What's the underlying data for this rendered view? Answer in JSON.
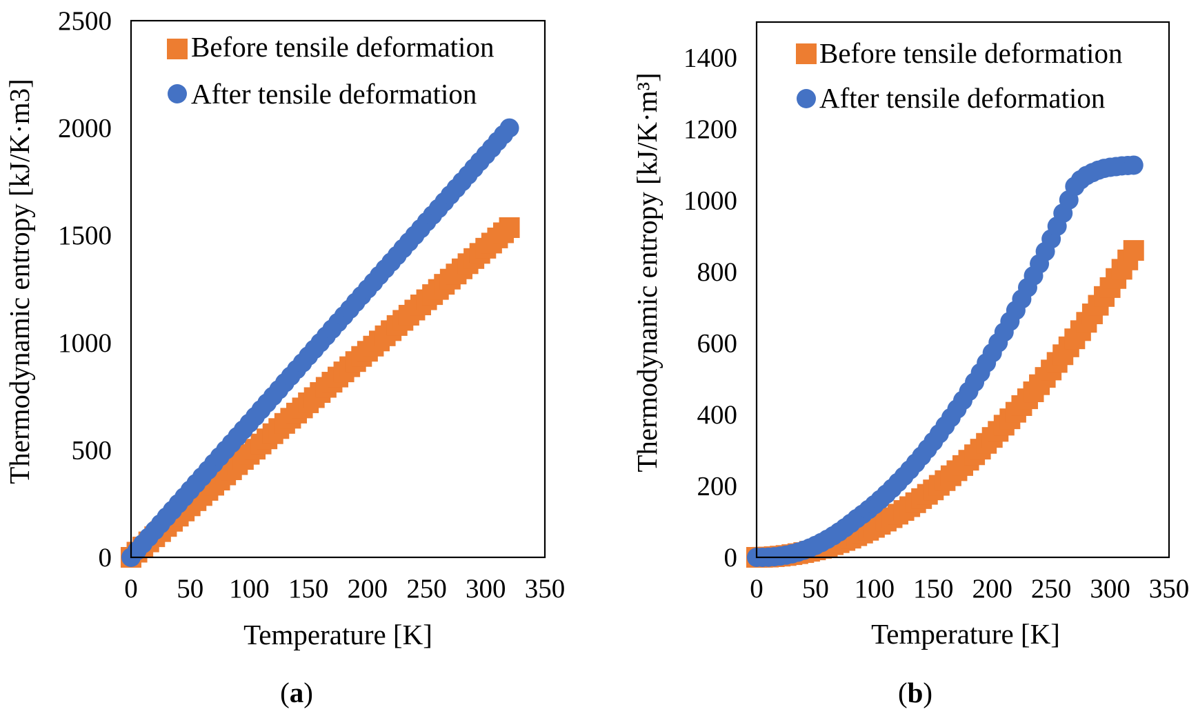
{
  "colors": {
    "before": "#ED7D31",
    "after": "#4472C4",
    "frame": "#000000"
  },
  "chart_data": [
    {
      "type": "scatter",
      "panel_label": {
        "open": "(",
        "letter": "a",
        "close": ")"
      },
      "xlabel": "Temperature [K]",
      "ylabel": "Thermodynamic entropy [kJ/K·m3]",
      "xlim": [
        0,
        350
      ],
      "ylim": [
        0,
        2500
      ],
      "xticks": [
        0,
        50,
        100,
        150,
        200,
        250,
        300,
        350
      ],
      "yticks": [
        0,
        500,
        1000,
        1500,
        2000,
        2500
      ],
      "grid": false,
      "legend_position": "top-left, inside plot",
      "series": [
        {
          "name": "Before tensile deformation",
          "marker": "square",
          "color": "#ED7D31",
          "x": [
            0,
            5,
            10,
            15,
            20,
            25,
            30,
            35,
            40,
            45,
            50,
            55,
            60,
            65,
            70,
            75,
            80,
            85,
            90,
            95,
            100,
            105,
            110,
            115,
            120,
            125,
            130,
            135,
            140,
            145,
            150,
            155,
            160,
            165,
            170,
            175,
            180,
            185,
            190,
            195,
            200,
            205,
            210,
            215,
            220,
            225,
            230,
            235,
            240,
            245,
            250,
            255,
            260,
            265,
            270,
            275,
            280,
            285,
            290,
            295,
            300,
            305,
            310,
            315,
            320
          ],
          "y": [
            0,
            24,
            48,
            72,
            96,
            120,
            144,
            168,
            192,
            216,
            240,
            264,
            288,
            312,
            336,
            360,
            384,
            408,
            432,
            456,
            480,
            504,
            528,
            552,
            576,
            600,
            624,
            648,
            672,
            696,
            720,
            744,
            768,
            792,
            816,
            840,
            864,
            888,
            912,
            936,
            960,
            984,
            1008,
            1032,
            1056,
            1080,
            1104,
            1128,
            1152,
            1176,
            1200,
            1224,
            1248,
            1272,
            1296,
            1320,
            1344,
            1368,
            1392,
            1416,
            1440,
            1464,
            1488,
            1512,
            1536
          ]
        },
        {
          "name": "After tensile deformation",
          "marker": "circle",
          "color": "#4472C4",
          "x": [
            0,
            5,
            10,
            15,
            20,
            25,
            30,
            35,
            40,
            45,
            50,
            55,
            60,
            65,
            70,
            75,
            80,
            85,
            90,
            95,
            100,
            105,
            110,
            115,
            120,
            125,
            130,
            135,
            140,
            145,
            150,
            155,
            160,
            165,
            170,
            175,
            180,
            185,
            190,
            195,
            200,
            205,
            210,
            215,
            220,
            225,
            230,
            235,
            240,
            245,
            250,
            255,
            260,
            265,
            270,
            275,
            280,
            285,
            290,
            295,
            300,
            305,
            310,
            315,
            320
          ],
          "y": [
            0,
            31,
            63,
            94,
            125,
            156,
            188,
            219,
            250,
            281,
            313,
            344,
            375,
            406,
            438,
            469,
            500,
            531,
            563,
            594,
            625,
            656,
            688,
            719,
            750,
            781,
            813,
            844,
            875,
            906,
            938,
            969,
            1000,
            1031,
            1063,
            1094,
            1125,
            1156,
            1188,
            1219,
            1250,
            1281,
            1313,
            1344,
            1375,
            1406,
            1438,
            1469,
            1500,
            1531,
            1563,
            1594,
            1625,
            1656,
            1688,
            1719,
            1750,
            1781,
            1813,
            1844,
            1875,
            1906,
            1938,
            1969,
            2000
          ]
        }
      ]
    },
    {
      "type": "scatter",
      "panel_label": {
        "open": "(",
        "letter": "b",
        "close": ")"
      },
      "xlabel": "Temperature [K]",
      "ylabel": "Thermodynamic entropy [kJ/K·m³]",
      "xlim": [
        0,
        350
      ],
      "ylim": [
        0,
        1500
      ],
      "xticks": [
        0,
        50,
        100,
        150,
        200,
        250,
        300,
        350
      ],
      "yticks": [
        0,
        200,
        400,
        600,
        800,
        1000,
        1200,
        1400
      ],
      "grid": false,
      "legend_position": "top-left, inside plot",
      "series": [
        {
          "name": "Before tensile deformation",
          "marker": "square",
          "color": "#ED7D31",
          "x": [
            0,
            5,
            10,
            15,
            20,
            25,
            30,
            35,
            40,
            45,
            50,
            55,
            60,
            65,
            70,
            75,
            80,
            85,
            90,
            95,
            100,
            105,
            110,
            115,
            120,
            125,
            130,
            135,
            140,
            145,
            150,
            155,
            160,
            165,
            170,
            175,
            180,
            185,
            190,
            195,
            200,
            205,
            210,
            215,
            220,
            225,
            230,
            235,
            240,
            245,
            250,
            255,
            260,
            265,
            270,
            275,
            280,
            285,
            290,
            295,
            300,
            305,
            310,
            315,
            320
          ],
          "y": [
            0,
            0.2,
            0.8,
            1.9,
            3.4,
            5.2,
            7.6,
            10.3,
            13.4,
            17.0,
            21.0,
            25.4,
            30.2,
            35.5,
            41.2,
            47.3,
            53.8,
            60.7,
            68.0,
            75.8,
            84.0,
            92.6,
            101.6,
            111.1,
            121.0,
            131.3,
            142.0,
            153.1,
            164.6,
            176.6,
            189.0,
            201.8,
            215.0,
            228.7,
            242.8,
            257.3,
            272.2,
            287.5,
            303.2,
            319.4,
            336.0,
            353.0,
            370.4,
            388.3,
            406.6,
            425.3,
            444.4,
            463.9,
            483.8,
            504.2,
            525.0,
            546.2,
            567.8,
            589.9,
            612.4,
            635.3,
            658.6,
            682.3,
            706.4,
            731.0,
            756.0,
            781.4,
            807.2,
            833.5,
            860.0
          ]
        },
        {
          "name": "After tensile deformation",
          "marker": "circle",
          "color": "#4472C4",
          "x": [
            0,
            5,
            10,
            15,
            20,
            25,
            30,
            35,
            40,
            45,
            50,
            55,
            60,
            65,
            70,
            75,
            80,
            85,
            90,
            95,
            100,
            105,
            110,
            115,
            120,
            125,
            130,
            135,
            140,
            145,
            150,
            155,
            160,
            165,
            170,
            175,
            180,
            185,
            190,
            195,
            200,
            205,
            210,
            215,
            220,
            225,
            230,
            235,
            240,
            245,
            250,
            255,
            260,
            265,
            270,
            275,
            280,
            285,
            290,
            295,
            300,
            305,
            310,
            315,
            320
          ],
          "y": [
            0,
            0.1,
            0.6,
            1.7,
            3.6,
            6.3,
            9.9,
            14.4,
            19.8,
            26.1,
            33.4,
            41.5,
            50.5,
            60.4,
            71.2,
            82.8,
            95.3,
            108.6,
            120.8,
            133.9,
            147.6,
            162.0,
            177.2,
            193.1,
            209.8,
            227.1,
            245.2,
            264.0,
            283.5,
            303.6,
            324.5,
            346.2,
            368.5,
            391.6,
            415.4,
            439.8,
            465.0,
            490.9,
            517.5,
            544.9,
            572.9,
            601.6,
            631.1,
            661.2,
            692.1,
            723.7,
            756.0,
            789.0,
            822.6,
            857.0,
            892.1,
            927.9,
            964.4,
            1001.6,
            1039.5,
            1058.0,
            1070.0,
            1078.0,
            1085.0,
            1090.0,
            1093.0,
            1095.0,
            1097.0,
            1098.0,
            1099.0
          ]
        }
      ]
    }
  ]
}
